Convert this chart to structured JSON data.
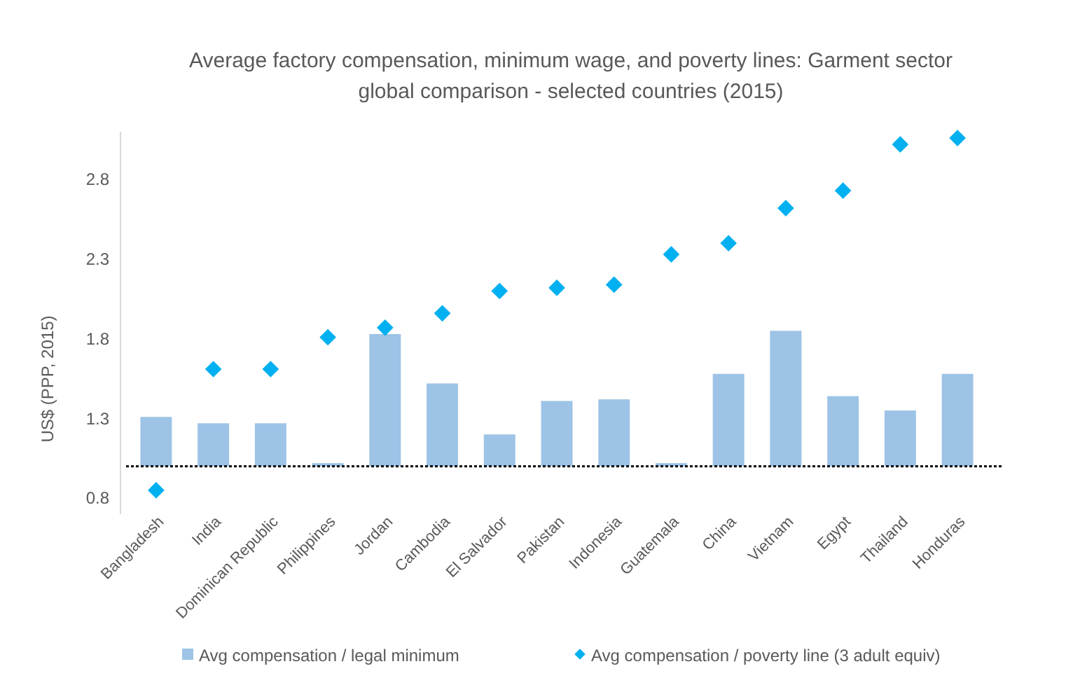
{
  "chart_data": {
    "type": "bar",
    "title": "Average factory compensation, minimum wage, and poverty lines: Garment sector global comparison - selected countries (2015)",
    "ylabel": "US$ (PPP, 2015)",
    "categories": [
      "Bangladesh",
      "India",
      "Dominican Republic",
      "Philippines",
      "Jordan",
      "Cambodia",
      "El Salvador",
      "Pakistan",
      "Indonesia",
      "Guatemala",
      "China",
      "Vietnam",
      "Egypt",
      "Thailand",
      "Honduras"
    ],
    "series": [
      {
        "name": "Avg compensation / legal minimum",
        "color": "#9dc3e6",
        "base": [
          1,
          1,
          1,
          1,
          1,
          1,
          1,
          1,
          1,
          1,
          1,
          1,
          1,
          1,
          1
        ],
        "values": [
          0.31,
          0.27,
          0.27,
          0.02,
          0.83,
          0.52,
          0.2,
          0.41,
          0.42,
          0.02,
          0.58,
          0.85,
          0.44,
          0.35,
          0.58
        ]
      },
      {
        "name": "Avg compensation / poverty line (3 adult equiv)",
        "type": "scatter",
        "color": "#00b0f0",
        "marker": "diamond",
        "x": [
          "Bangladesh",
          "India",
          "Dominican Republic",
          "Philippines",
          "Jordan",
          "Cambodia",
          "El Salvador",
          "Pakistan",
          "Indonesia",
          "Guatemala",
          "China",
          "Vietnam",
          "Egypt",
          "Thailand",
          "Honduras"
        ],
        "values": [
          0.85,
          1.61,
          1.61,
          1.81,
          1.87,
          1.96,
          2.1,
          2.12,
          2.14,
          2.33,
          2.4,
          2.62,
          2.73,
          3.02,
          3.06
        ]
      }
    ],
    "ylim": [
      0.7,
      3.1
    ],
    "yticks": [
      0.8,
      1.3,
      1.8,
      2.3,
      2.8
    ],
    "ref_lines": [
      {
        "axis": "y",
        "value": 1,
        "color": "#000000",
        "line_style": "dotted"
      }
    ],
    "grid": false,
    "legend": "bottom"
  }
}
